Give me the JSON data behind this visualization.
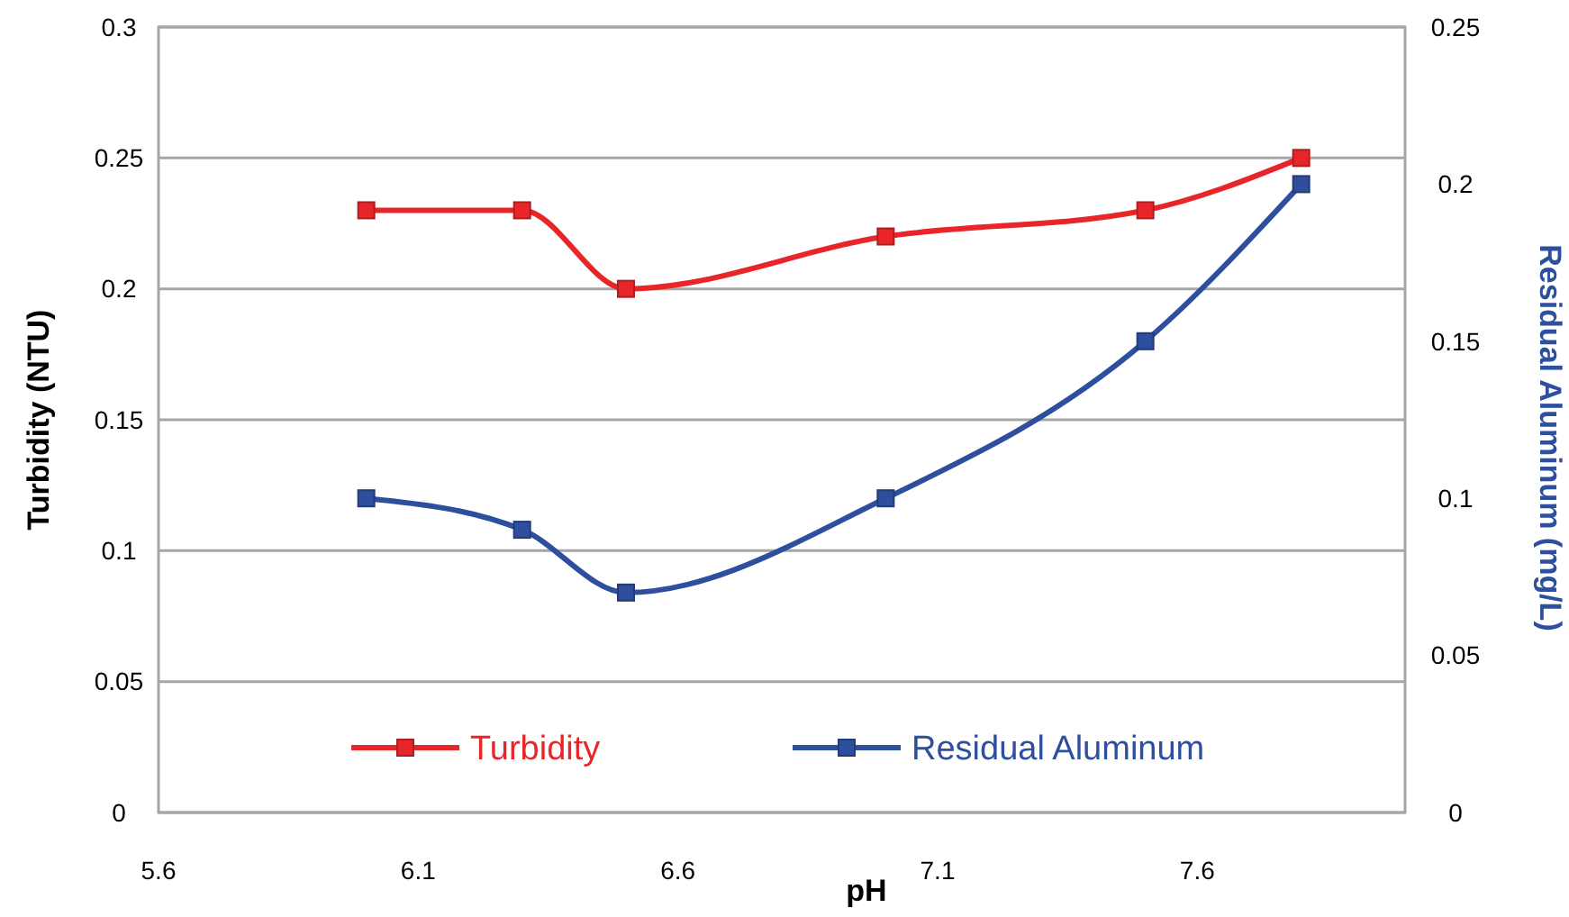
{
  "chart_data": {
    "type": "line",
    "xlabel": "pH",
    "ylabel": "Turbidity (NTU)",
    "y2label": "Residual Aluminum (mg/L)",
    "x": [
      6.0,
      6.3,
      6.5,
      7.0,
      7.5,
      7.8
    ],
    "xlim": [
      5.6,
      8.0
    ],
    "xticks": [
      5.6,
      6.1,
      6.6,
      7.1,
      7.6
    ],
    "ylim": [
      0,
      0.3
    ],
    "yticks": [
      0,
      0.05,
      0.1,
      0.15,
      0.2,
      0.25,
      0.3
    ],
    "y2lim": [
      0,
      0.25
    ],
    "y2ticks": [
      0,
      0.05,
      0.1,
      0.15,
      0.2,
      0.25
    ],
    "series": [
      {
        "name": "Turbidity",
        "color": "#e8262a",
        "values": [
          0.23,
          0.23,
          0.2,
          0.22,
          0.23,
          0.25
        ]
      },
      {
        "name": "Residual Aluminum",
        "color": "#2e4e9e",
        "axis": "y2",
        "values": [
          0.1,
          0.09,
          0.07,
          0.1,
          0.15,
          0.2
        ]
      }
    ],
    "grid": "y",
    "legend": "bottom",
    "marker": "square",
    "line_style": "solid"
  }
}
